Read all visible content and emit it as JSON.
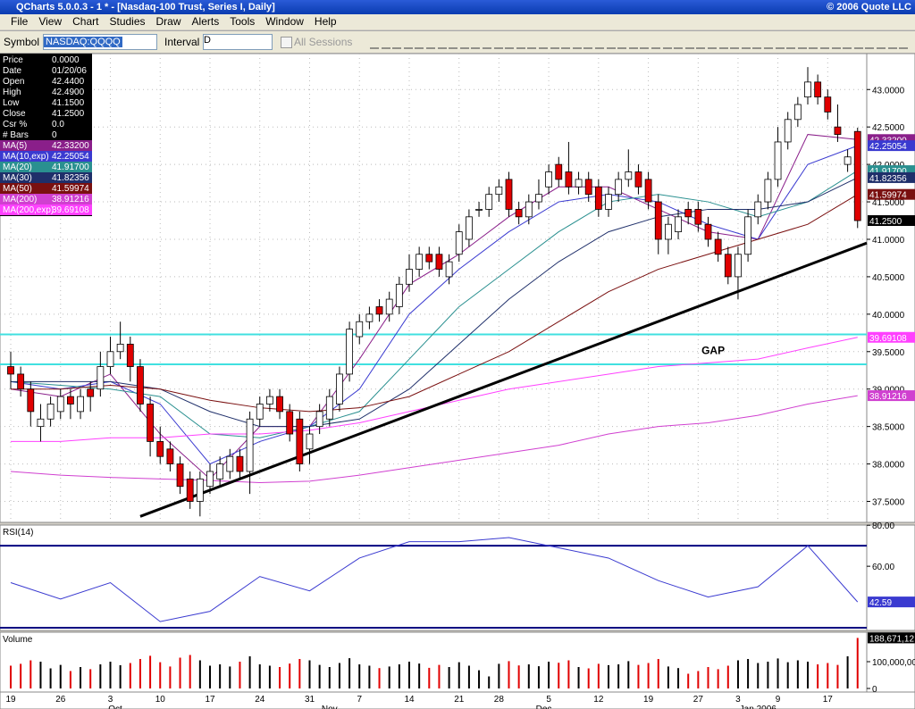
{
  "window": {
    "title": "QCharts 5.0.0.3 - 1 * - [Nasdaq-100 Trust, Series I, Daily]",
    "copyright": "© 2006 Quote LLC"
  },
  "menu": [
    "File",
    "View",
    "Chart",
    "Studies",
    "Draw",
    "Alerts",
    "Tools",
    "Window",
    "Help"
  ],
  "toolbar": {
    "symbol_label": "Symbol",
    "symbol": "NASDAQ:QQQQ",
    "interval_label": "Interval",
    "interval": "D",
    "all_sessions": "All Sessions"
  },
  "info": [
    {
      "label": "Price",
      "value": "0.0000"
    },
    {
      "label": "Date",
      "value": "01/20/06"
    },
    {
      "label": "Open",
      "value": "42.4400"
    },
    {
      "label": "High",
      "value": "42.4900"
    },
    {
      "label": "Low",
      "value": "41.1500"
    },
    {
      "label": "Close",
      "value": "41.2500"
    },
    {
      "label": "Csr %",
      "value": "0.0"
    },
    {
      "label": "# Bars",
      "value": "0"
    }
  ],
  "chart": {
    "type": "candlestick",
    "ylim": [
      37.22,
      43.48
    ],
    "yticks": [
      {
        "value": 37.5,
        "label": "37.5000"
      },
      {
        "value": 38,
        "label": "38.0000"
      },
      {
        "value": 38.5,
        "label": "38.5000"
      },
      {
        "value": 39,
        "label": "39.0000"
      },
      {
        "value": 39.5,
        "label": "39.5000"
      },
      {
        "value": 40,
        "label": "40.0000"
      },
      {
        "value": 40.5,
        "label": "40.5000"
      },
      {
        "value": 41,
        "label": "41.0000"
      },
      {
        "value": 41.5,
        "label": "41.5000"
      },
      {
        "value": 42,
        "label": "42.0000"
      },
      {
        "value": 42.5,
        "label": "42.5000"
      },
      {
        "value": 43,
        "label": "43.0000"
      }
    ],
    "last_close_label": "41.2500",
    "candles": [
      [
        39.3,
        39.5,
        39.0,
        39.2
      ],
      [
        39.2,
        39.3,
        38.9,
        39.0
      ],
      [
        39.0,
        39.1,
        38.5,
        38.7
      ],
      [
        38.5,
        38.8,
        38.3,
        38.6
      ],
      [
        38.6,
        38.9,
        38.5,
        38.8
      ],
      [
        38.7,
        39.0,
        38.6,
        38.9
      ],
      [
        38.9,
        39.0,
        38.6,
        38.8
      ],
      [
        38.7,
        39.0,
        38.6,
        38.9
      ],
      [
        39.0,
        39.1,
        38.7,
        38.9
      ],
      [
        39.0,
        39.5,
        38.9,
        39.3
      ],
      [
        39.3,
        39.7,
        39.2,
        39.5
      ],
      [
        39.5,
        39.9,
        39.4,
        39.6
      ],
      [
        39.6,
        39.7,
        39.1,
        39.3
      ],
      [
        39.3,
        39.4,
        38.7,
        38.8
      ],
      [
        38.8,
        38.9,
        38.1,
        38.3
      ],
      [
        38.3,
        38.5,
        38.0,
        38.1
      ],
      [
        38.2,
        38.3,
        37.9,
        38.0
      ],
      [
        38.0,
        38.1,
        37.6,
        37.7
      ],
      [
        37.8,
        37.9,
        37.4,
        37.5
      ],
      [
        37.5,
        37.9,
        37.3,
        37.8
      ],
      [
        37.7,
        38.0,
        37.6,
        37.9
      ],
      [
        37.8,
        38.1,
        37.7,
        38.0
      ],
      [
        37.9,
        38.2,
        37.8,
        38.1
      ],
      [
        38.1,
        38.2,
        37.8,
        37.9
      ],
      [
        37.9,
        38.7,
        37.6,
        38.6
      ],
      [
        38.6,
        38.9,
        38.5,
        38.8
      ],
      [
        38.8,
        39.0,
        38.7,
        38.9
      ],
      [
        38.9,
        39.0,
        38.6,
        38.7
      ],
      [
        38.7,
        38.8,
        38.3,
        38.4
      ],
      [
        38.6,
        38.7,
        37.9,
        38.0
      ],
      [
        38.2,
        38.5,
        38.0,
        38.4
      ],
      [
        38.5,
        38.8,
        38.4,
        38.7
      ],
      [
        38.6,
        39.0,
        38.5,
        38.9
      ],
      [
        38.8,
        39.3,
        38.7,
        39.2
      ],
      [
        39.2,
        39.9,
        39.1,
        39.8
      ],
      [
        39.7,
        40.0,
        39.6,
        39.9
      ],
      [
        39.9,
        40.1,
        39.8,
        40.0
      ],
      [
        40.1,
        40.2,
        39.9,
        40.0
      ],
      [
        40.0,
        40.3,
        39.9,
        40.2
      ],
      [
        40.1,
        40.5,
        40.0,
        40.4
      ],
      [
        40.4,
        40.8,
        40.3,
        40.6
      ],
      [
        40.6,
        40.9,
        40.5,
        40.8
      ],
      [
        40.8,
        40.9,
        40.6,
        40.7
      ],
      [
        40.8,
        40.9,
        40.5,
        40.6
      ],
      [
        40.5,
        40.8,
        40.4,
        40.7
      ],
      [
        40.8,
        41.2,
        40.7,
        41.1
      ],
      [
        41.0,
        41.4,
        40.9,
        41.3
      ],
      [
        41.4,
        41.5,
        41.3,
        41.4
      ],
      [
        41.4,
        41.7,
        41.3,
        41.6
      ],
      [
        41.6,
        41.8,
        41.5,
        41.7
      ],
      [
        41.8,
        41.9,
        41.3,
        41.4
      ],
      [
        41.4,
        41.5,
        41.2,
        41.3
      ],
      [
        41.3,
        41.6,
        41.2,
        41.5
      ],
      [
        41.5,
        41.8,
        41.4,
        41.6
      ],
      [
        41.7,
        42.0,
        41.6,
        41.9
      ],
      [
        42.0,
        42.1,
        41.7,
        41.8
      ],
      [
        41.9,
        42.3,
        41.6,
        41.7
      ],
      [
        41.7,
        41.9,
        41.6,
        41.8
      ],
      [
        41.8,
        41.9,
        41.5,
        41.6
      ],
      [
        41.7,
        41.8,
        41.3,
        41.4
      ],
      [
        41.4,
        41.7,
        41.3,
        41.6
      ],
      [
        41.6,
        41.9,
        41.5,
        41.8
      ],
      [
        41.8,
        42.2,
        41.7,
        41.9
      ],
      [
        41.9,
        42.0,
        41.6,
        41.7
      ],
      [
        41.8,
        41.9,
        41.4,
        41.5
      ],
      [
        41.5,
        41.6,
        40.8,
        41.0
      ],
      [
        41.0,
        41.3,
        40.8,
        41.2
      ],
      [
        41.1,
        41.4,
        41.0,
        41.3
      ],
      [
        41.4,
        41.5,
        41.2,
        41.3
      ],
      [
        41.4,
        41.5,
        41.1,
        41.2
      ],
      [
        41.2,
        41.3,
        40.9,
        41.0
      ],
      [
        41.0,
        41.1,
        40.7,
        40.8
      ],
      [
        40.8,
        40.9,
        40.4,
        40.5
      ],
      [
        40.5,
        40.9,
        40.2,
        40.8
      ],
      [
        40.8,
        41.4,
        40.7,
        41.3
      ],
      [
        41.3,
        41.6,
        41.2,
        41.5
      ],
      [
        41.5,
        41.9,
        41.4,
        41.8
      ],
      [
        41.8,
        42.5,
        41.7,
        42.3
      ],
      [
        42.3,
        42.7,
        42.2,
        42.6
      ],
      [
        42.6,
        42.9,
        42.5,
        42.8
      ],
      [
        42.9,
        43.3,
        42.8,
        43.1
      ],
      [
        43.1,
        43.2,
        42.8,
        42.9
      ],
      [
        42.9,
        43.0,
        42.6,
        42.7
      ],
      [
        42.5,
        42.8,
        42.3,
        42.4
      ],
      [
        42.0,
        42.2,
        41.9,
        42.1
      ],
      [
        42.44,
        42.49,
        41.15,
        41.25
      ]
    ],
    "ma_x": [
      0,
      5,
      10,
      15,
      20,
      25,
      30,
      35,
      40,
      45,
      50,
      55,
      60,
      65,
      70,
      75,
      80,
      85
    ],
    "ma": [
      {
        "name": "MA(5)",
        "color": "#8a1f8a",
        "label": "42.33200",
        "values": [
          39.0,
          38.9,
          39.2,
          38.4,
          37.8,
          38.5,
          38.5,
          39.4,
          40.4,
          40.8,
          41.3,
          41.7,
          41.7,
          41.4,
          41.1,
          41.0,
          42.4,
          42.332
        ]
      },
      {
        "name": "MA(10,exp)",
        "color": "#3a3ad0",
        "label": "42.25054",
        "values": [
          39.1,
          39.0,
          39.1,
          38.8,
          38.0,
          38.3,
          38.5,
          39.0,
          40.0,
          40.6,
          41.1,
          41.5,
          41.6,
          41.5,
          41.2,
          41.0,
          42.0,
          42.25054
        ]
      },
      {
        "name": "MA(20)",
        "color": "#2a9090",
        "label": "41.91700",
        "values": [
          39.1,
          39.05,
          39.0,
          38.9,
          38.4,
          38.35,
          38.5,
          38.7,
          39.4,
          40.1,
          40.6,
          41.1,
          41.5,
          41.6,
          41.5,
          41.3,
          41.5,
          41.917
        ]
      },
      {
        "name": "MA(30)",
        "color": "#1f2f6a",
        "label": "41.82356",
        "values": [
          39.1,
          39.1,
          39.1,
          39.0,
          38.7,
          38.5,
          38.5,
          38.6,
          39.0,
          39.6,
          40.2,
          40.7,
          41.1,
          41.3,
          41.4,
          41.4,
          41.5,
          41.82356
        ]
      },
      {
        "name": "MA(50)",
        "color": "#7a1010",
        "label": "41.59974",
        "values": [
          39.0,
          39.0,
          39.05,
          39.0,
          38.85,
          38.75,
          38.7,
          38.75,
          38.9,
          39.2,
          39.5,
          39.9,
          40.3,
          40.6,
          40.8,
          41.0,
          41.2,
          41.59974
        ]
      },
      {
        "name": "MA(200)",
        "color": "#d040d0",
        "label": "38.91216",
        "values": [
          37.9,
          37.85,
          37.82,
          37.8,
          37.78,
          37.75,
          37.77,
          37.85,
          37.95,
          38.05,
          38.15,
          38.25,
          38.4,
          38.5,
          38.55,
          38.65,
          38.8,
          38.91216
        ]
      },
      {
        "name": "MA(200,exp)",
        "color": "#ff40ff",
        "label": "39.69108",
        "values": [
          38.3,
          38.3,
          38.35,
          38.35,
          38.4,
          38.4,
          38.45,
          38.55,
          38.7,
          38.85,
          39.0,
          39.1,
          39.2,
          39.3,
          39.35,
          39.4,
          39.55,
          39.69108
        ]
      }
    ],
    "trendline": {
      "x": [
        13,
        86.5
      ],
      "y": [
        37.3,
        40.95
      ]
    },
    "gap_lines": [
      39.73,
      39.33
    ],
    "annotation": {
      "text": "GAP",
      "x": 70.5,
      "y": 39.47
    },
    "categories": [
      "19",
      "26",
      "3",
      "10",
      "17",
      "24",
      "31",
      "7",
      "14",
      "21",
      "28",
      "5",
      "12",
      "19",
      "27",
      "3",
      "9",
      "17"
    ],
    "category_bars": [
      0,
      5,
      10,
      15,
      20,
      25,
      30,
      35,
      40,
      45,
      49,
      54,
      59,
      64,
      69,
      73,
      77,
      82
    ],
    "months": [
      "Oct",
      "Nov",
      "Dec",
      "Jan 2006"
    ],
    "month_bars": [
      10.5,
      32,
      53.5,
      75
    ]
  },
  "rsi": {
    "title": "RSI(14)",
    "color": "#3a3ad0",
    "ylim": [
      28.7,
      80.1
    ],
    "yticks": [
      {
        "value": 80,
        "label": "80.00"
      },
      {
        "value": 60,
        "label": "60.00"
      }
    ],
    "levels": [
      70,
      30
    ],
    "label": "42.59",
    "values": [
      52,
      44,
      52,
      33,
      38,
      55,
      48,
      64,
      72,
      72,
      74,
      69,
      64,
      53,
      45,
      50,
      70,
      42.59
    ]
  },
  "volume": {
    "title": "Volume",
    "ylim": [
      -13300000,
      210000000
    ],
    "yticks": [
      {
        "value": 100000000,
        "label": "100,000,00"
      },
      0
    ],
    "label": "188,671,12",
    "values": [
      85000000.0,
      92000000.0,
      105000000.0,
      100000000.0,
      75000000.0,
      88000000.0,
      65000000.0,
      80000000.0,
      72000000.0,
      90000000.0,
      100000000.0,
      87000000.0,
      95000000.0,
      110000000.0,
      122000000.0,
      98000000.0,
      82000000.0,
      115000000.0,
      125000000.0,
      105000000.0,
      85000000.0,
      90000000.0,
      82000000.0,
      100000000.0,
      120000000.0,
      90000000.0,
      85000000.0,
      80000000.0,
      93000000.0,
      110000000.0,
      105000000.0,
      88000000.0,
      80000000.0,
      95000000.0,
      113000000.0,
      90000000.0,
      85000000.0,
      76000000.0,
      82000000.0,
      90000000.0,
      100000000.0,
      93000000.0,
      77000000.0,
      88000000.0,
      80000000.0,
      98000000.0,
      85000000.0,
      68000000.0,
      45000000.0,
      92000000.0,
      102000000.0,
      86000000.0,
      90000000.0,
      83000000.0,
      100000000.0,
      96000000.0,
      105000000.0,
      80000000.0,
      75000000.0,
      92000000.0,
      87000000.0,
      90000000.0,
      102000000.0,
      88000000.0,
      95000000.0,
      110000000.0,
      82000000.0,
      76000000.0,
      55000000.0,
      65000000.0,
      80000000.0,
      72000000.0,
      85000000.0,
      105000000.0,
      110000000.0,
      95000000.0,
      100000000.0,
      112000000.0,
      98000000.0,
      105000000.0,
      100000000.0,
      90000000.0,
      95000000.0,
      88000000.0,
      120000000.0,
      188671120.0
    ]
  }
}
